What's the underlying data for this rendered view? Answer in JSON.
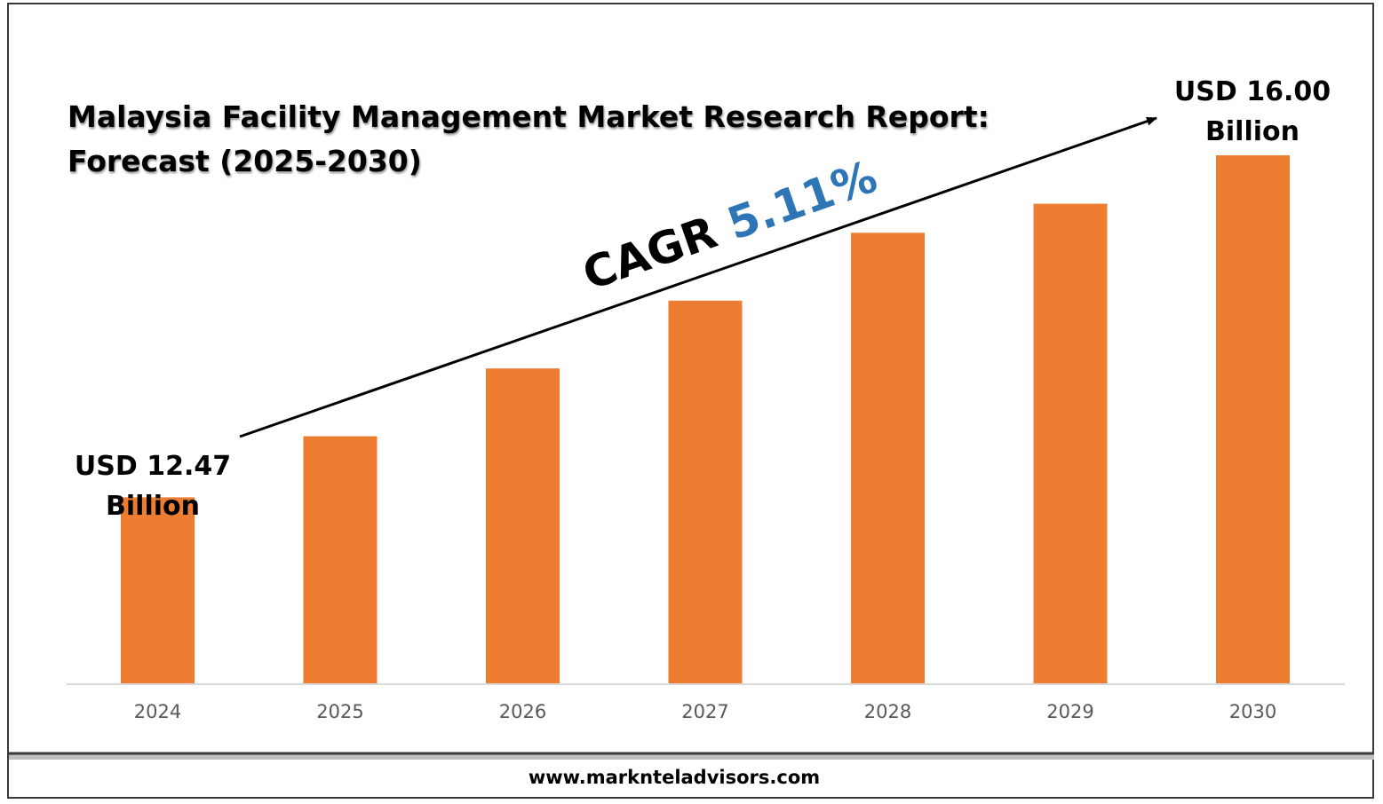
{
  "title": {
    "line1": "Malaysia Facility Management Market Research Report:",
    "line2": "Forecast (2025-2030)"
  },
  "cagr": {
    "prefix": "CAGR",
    "value": "5.11%"
  },
  "start_label": {
    "line1": "USD 12.47",
    "line2": "Billion"
  },
  "end_label": {
    "line1": "USD 16.00",
    "line2": "Billion"
  },
  "footer": {
    "website": "www.marknteladvisors.com"
  },
  "colors": {
    "bar": "#ED7D31",
    "cagr_value": "#2E75B6",
    "text": "#000000",
    "tick": "#595959",
    "axis": "#D9D9D9"
  },
  "chart_data": {
    "type": "bar",
    "categories": [
      "2024",
      "2025",
      "2026",
      "2027",
      "2028",
      "2029",
      "2030"
    ],
    "values": [
      12.47,
      13.1,
      13.8,
      14.5,
      15.2,
      15.5,
      16.0
    ],
    "ylim": [
      10.55,
      16.3
    ],
    "grid": false,
    "legend": "none"
  }
}
